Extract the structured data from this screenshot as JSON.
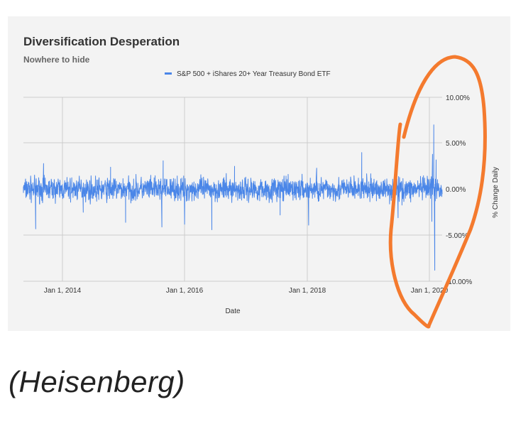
{
  "caption": "(Heisenberg)",
  "annotation_color": "#f47a2e",
  "chart_data": {
    "type": "line",
    "title": "Diversification Desperation",
    "subtitle": "Nowhere to hide",
    "xlabel": "Date",
    "ylabel": "% Change Daily",
    "xlim": [
      "2013-05-01",
      "2020-04-30"
    ],
    "ylim": [
      -10,
      10
    ],
    "x_ticks": [
      "Jan 1, 2014",
      "Jan 1, 2016",
      "Jan 1, 2018",
      "Jan 1, 2020"
    ],
    "y_ticks": [
      "10.00%",
      "5.00%",
      "0.00%",
      "-5.00%",
      "-10.00%"
    ],
    "y_tick_values": [
      10,
      5,
      0,
      -5,
      -10
    ],
    "grid": true,
    "legend_position": "top",
    "series": [
      {
        "name": "S&P 500 + iShares 20+ Year Treasury Bond ETF",
        "color": "#4a86e8",
        "sparse_points": [
          {
            "x": "2013-05-01",
            "y": 0.3
          },
          {
            "x": "2013-07-15",
            "y": -4.3
          },
          {
            "x": "2013-09-01",
            "y": 2.8
          },
          {
            "x": "2014-05-01",
            "y": -2.5
          },
          {
            "x": "2014-10-15",
            "y": 2.4
          },
          {
            "x": "2015-01-15",
            "y": -3.6
          },
          {
            "x": "2015-08-24",
            "y": -4.1
          },
          {
            "x": "2015-09-01",
            "y": 3.1
          },
          {
            "x": "2016-01-10",
            "y": -3.8
          },
          {
            "x": "2016-06-24",
            "y": -4.4
          },
          {
            "x": "2016-11-10",
            "y": 2.5
          },
          {
            "x": "2017-08-15",
            "y": -2.8
          },
          {
            "x": "2018-02-05",
            "y": -3.9
          },
          {
            "x": "2018-03-26",
            "y": 2.3
          },
          {
            "x": "2018-12-26",
            "y": 4.0
          },
          {
            "x": "2019-08-05",
            "y": -3.1
          },
          {
            "x": "2020-02-27",
            "y": -3.5
          },
          {
            "x": "2020-03-02",
            "y": 3.8
          },
          {
            "x": "2020-03-10",
            "y": 7.0
          },
          {
            "x": "2020-03-16",
            "y": -8.8
          },
          {
            "x": "2020-03-24",
            "y": 3.2
          },
          {
            "x": "2020-04-30",
            "y": -0.5
          }
        ]
      }
    ]
  }
}
